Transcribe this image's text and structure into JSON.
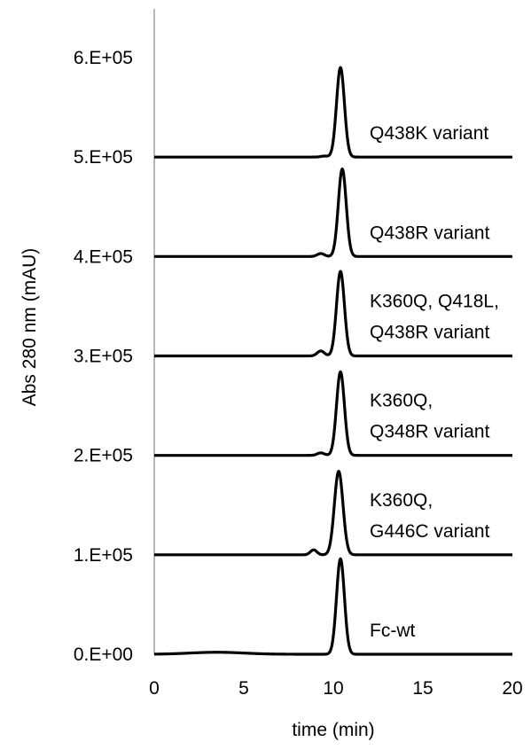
{
  "chart_data": {
    "type": "line",
    "title": "",
    "xlabel": "time (min)",
    "ylabel": "Abs 280 nm (mAU)",
    "xlim": [
      0,
      20
    ],
    "ylim": [
      0,
      600000
    ],
    "xticks": [
      {
        "value": 0,
        "label": "0"
      },
      {
        "value": 5,
        "label": "5"
      },
      {
        "value": 10,
        "label": "10"
      },
      {
        "value": 15,
        "label": "15"
      },
      {
        "value": 20,
        "label": "20"
      }
    ],
    "yticks": [
      {
        "value": 0,
        "label": "0.E+00"
      },
      {
        "value": 100000,
        "label": "1.E+05"
      },
      {
        "value": 200000,
        "label": "2.E+05"
      },
      {
        "value": 300000,
        "label": "3.E+05"
      },
      {
        "value": 400000,
        "label": "4.E+05"
      },
      {
        "value": 500000,
        "label": "5.E+05"
      },
      {
        "value": 600000,
        "label": "6.E+05"
      }
    ],
    "grid": false,
    "legend": "none",
    "line_color": "#000000",
    "series": [
      {
        "label_lines": [
          "Fc-wt"
        ],
        "baseline": 0,
        "peak_x": 10.4,
        "peak_height": 96000,
        "width": 0.22,
        "shoulder_x": 3.5,
        "shoulder_height": 2000,
        "shoulder_width": 1.5
      },
      {
        "label_lines": [
          "K360Q,",
          "G446C variant"
        ],
        "baseline": 100000,
        "peak_x": 10.3,
        "peak_height": 84000,
        "width": 0.24,
        "shoulder_x": 8.9,
        "shoulder_height": 5000,
        "shoulder_width": 0.18
      },
      {
        "label_lines": [
          "K360Q,",
          "Q348R variant"
        ],
        "baseline": 200000,
        "peak_x": 10.4,
        "peak_height": 84000,
        "width": 0.22,
        "shoulder_x": 9.3,
        "shoulder_height": 2500,
        "shoulder_width": 0.2
      },
      {
        "label_lines": [
          "K360Q, Q418L,",
          "Q438R variant"
        ],
        "baseline": 300000,
        "peak_x": 10.4,
        "peak_height": 85000,
        "width": 0.22,
        "shoulder_x": 9.3,
        "shoulder_height": 5000,
        "shoulder_width": 0.2
      },
      {
        "label_lines": [
          "Q438R variant"
        ],
        "baseline": 400000,
        "peak_x": 10.5,
        "peak_height": 88000,
        "width": 0.22,
        "shoulder_x": 9.3,
        "shoulder_height": 3000,
        "shoulder_width": 0.2
      },
      {
        "label_lines": [
          "Q438K variant"
        ],
        "baseline": 500000,
        "peak_x": 10.4,
        "peak_height": 90000,
        "width": 0.22,
        "shoulder_x": 9.5,
        "shoulder_height": 1000,
        "shoulder_width": 0.2
      }
    ]
  }
}
